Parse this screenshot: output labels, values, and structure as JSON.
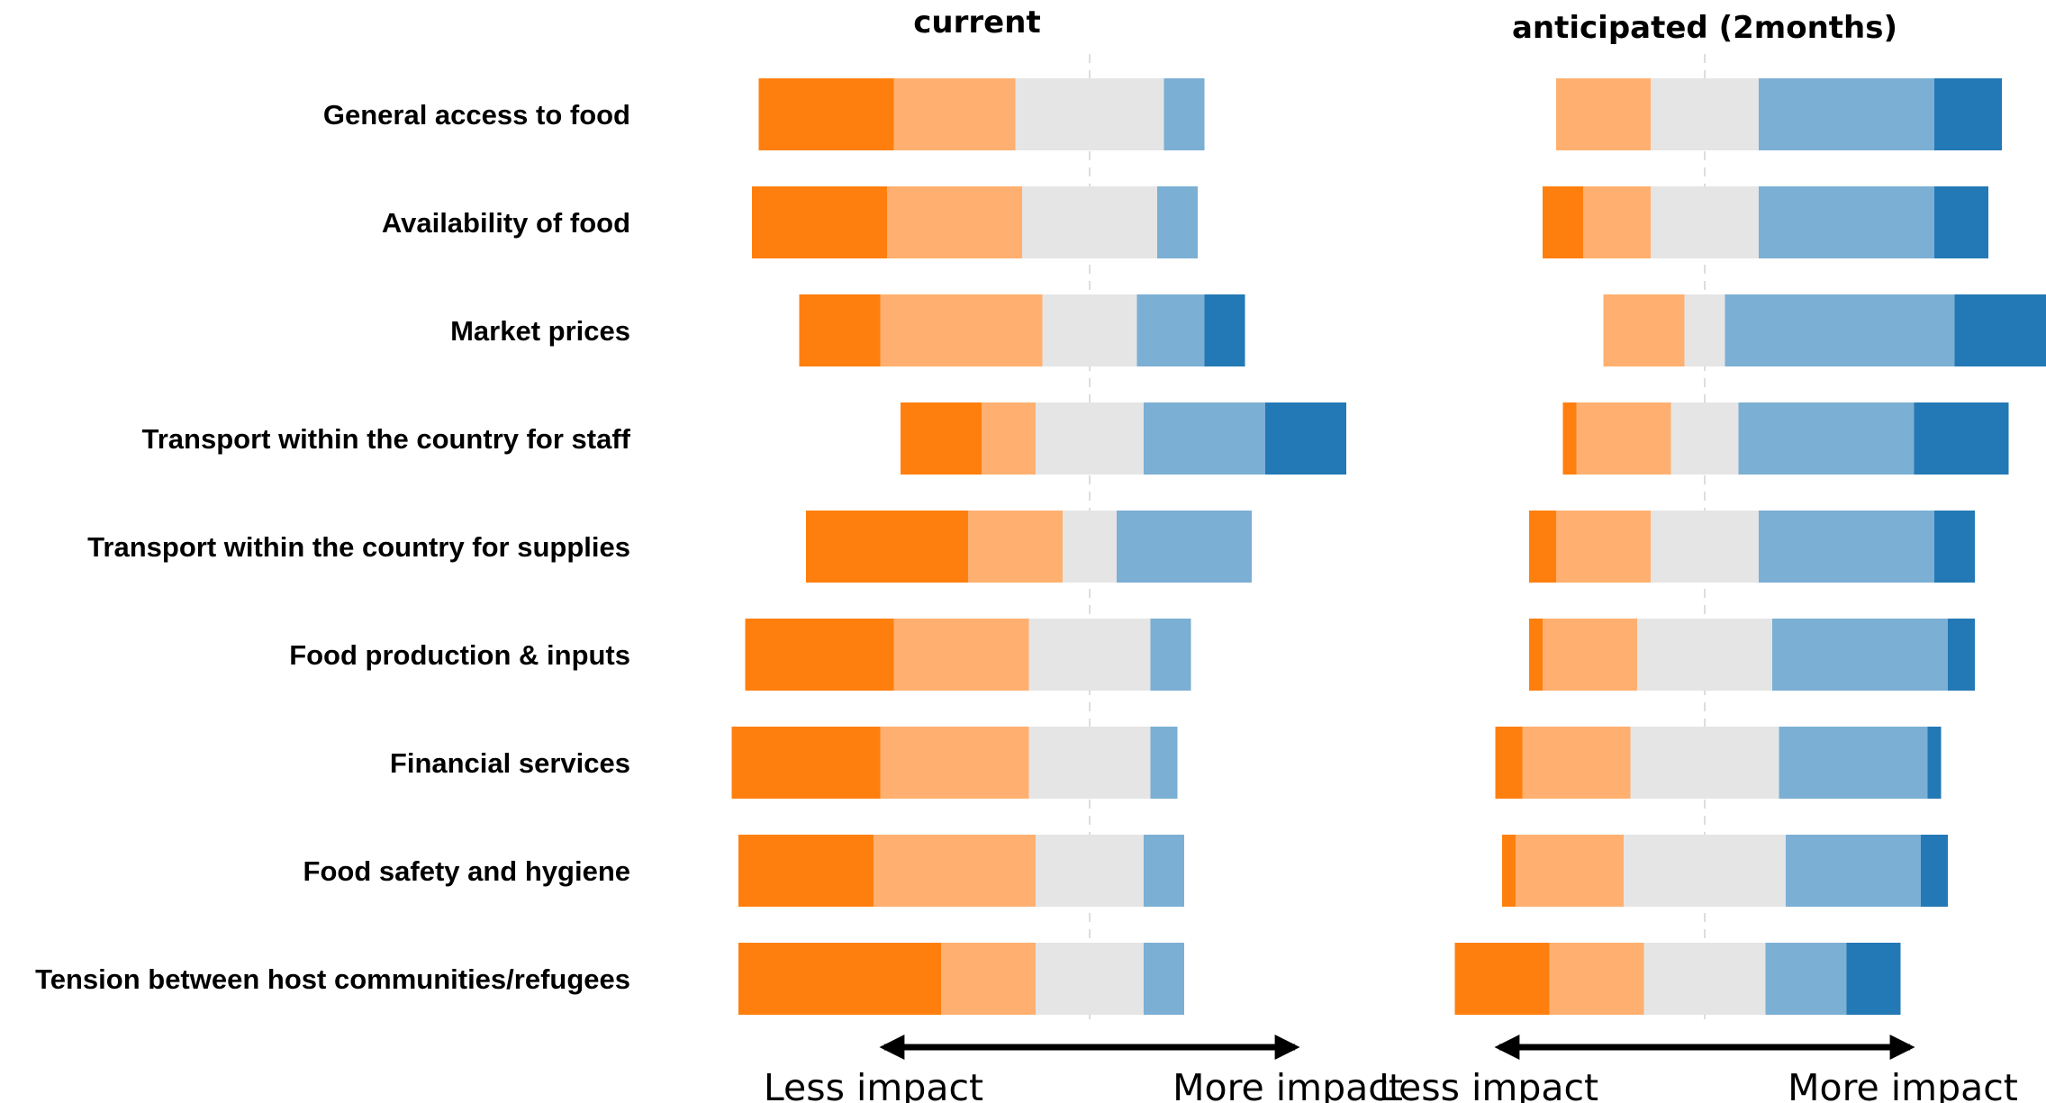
{
  "chart_data": {
    "type": "bar",
    "subtype": "diverging-stacked-horizontal",
    "categories": [
      "General access to food",
      "Availability of food",
      "Market prices",
      "Transport within the country for staff",
      "Transport within the country for supplies",
      "Food production & inputs",
      "Financial services",
      "Food safety and hygiene",
      "Tension between host communities/refugees"
    ],
    "segment_colors": [
      "#ff7f0e",
      "#ffb070",
      "#e5e5e5",
      "#7bafd4",
      "#2379b5"
    ],
    "panels": [
      {
        "title": "current",
        "arrow_left": "Less impact",
        "arrow_right": "More impact",
        "segments": [
          [
            20,
            18,
            22,
            6,
            0
          ],
          [
            20,
            20,
            20,
            6,
            0
          ],
          [
            12,
            24,
            14,
            10,
            6
          ],
          [
            12,
            8,
            16,
            18,
            12
          ],
          [
            24,
            14,
            8,
            20,
            0
          ],
          [
            22,
            20,
            18,
            6,
            0
          ],
          [
            22,
            22,
            18,
            4,
            0
          ],
          [
            20,
            24,
            16,
            6,
            0
          ],
          [
            30,
            14,
            16,
            6,
            0
          ]
        ]
      },
      {
        "title": "anticipated (2months)",
        "arrow_left": "Less impact",
        "arrow_right": "More impact",
        "segments": [
          [
            0,
            14,
            16,
            26,
            10
          ],
          [
            6,
            10,
            16,
            26,
            8
          ],
          [
            0,
            12,
            6,
            34,
            14
          ],
          [
            2,
            14,
            10,
            26,
            14
          ],
          [
            4,
            14,
            16,
            26,
            6
          ],
          [
            2,
            14,
            20,
            26,
            4
          ],
          [
            4,
            16,
            22,
            22,
            2
          ],
          [
            2,
            16,
            24,
            20,
            4
          ],
          [
            14,
            14,
            18,
            12,
            8
          ]
        ]
      }
    ],
    "grid": false,
    "legend": "none"
  }
}
